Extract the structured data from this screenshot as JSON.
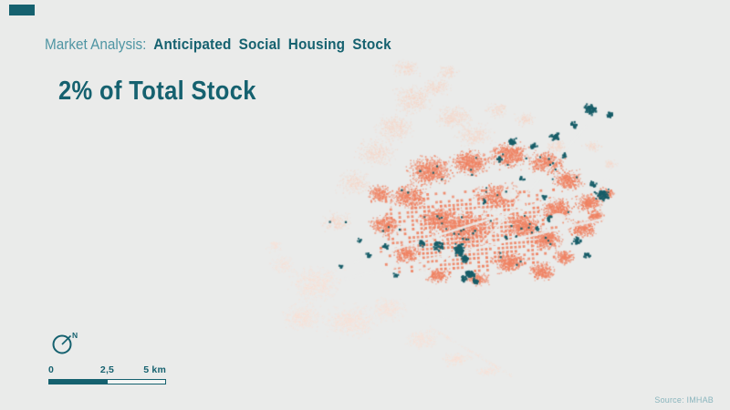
{
  "slide": {
    "background": "#eaebea",
    "accent_bar_color": "#15616f"
  },
  "header": {
    "pretitle": "Market Analysis:",
    "title": "Anticipated Social Housing Stock",
    "pretitle_color": "#4f95a3",
    "title_color": "#15616f"
  },
  "headline": {
    "text": "2% of Total Stock",
    "color": "#15616f"
  },
  "map": {
    "description": "dot-density city map",
    "layers": [
      {
        "name": "total-housing-stock-dots",
        "color": "#ef8262"
      },
      {
        "name": "outskirts-low-density-dots",
        "color": "#f6d5c6"
      },
      {
        "name": "port-industrial-dots",
        "color": "#f8e0d5"
      },
      {
        "name": "social-housing-dots",
        "color": "#175d68"
      }
    ]
  },
  "compass": {
    "label": "N",
    "color": "#15616f"
  },
  "scale_bar": {
    "tick_start": "0",
    "tick_mid": "2,5",
    "tick_end": "5 km",
    "filled_color": "#15616f",
    "empty_color": "#f3f5f4",
    "label_color": "#15616f"
  },
  "source": {
    "text": "Source: IMHAB",
    "color": "#8ab5bd"
  }
}
